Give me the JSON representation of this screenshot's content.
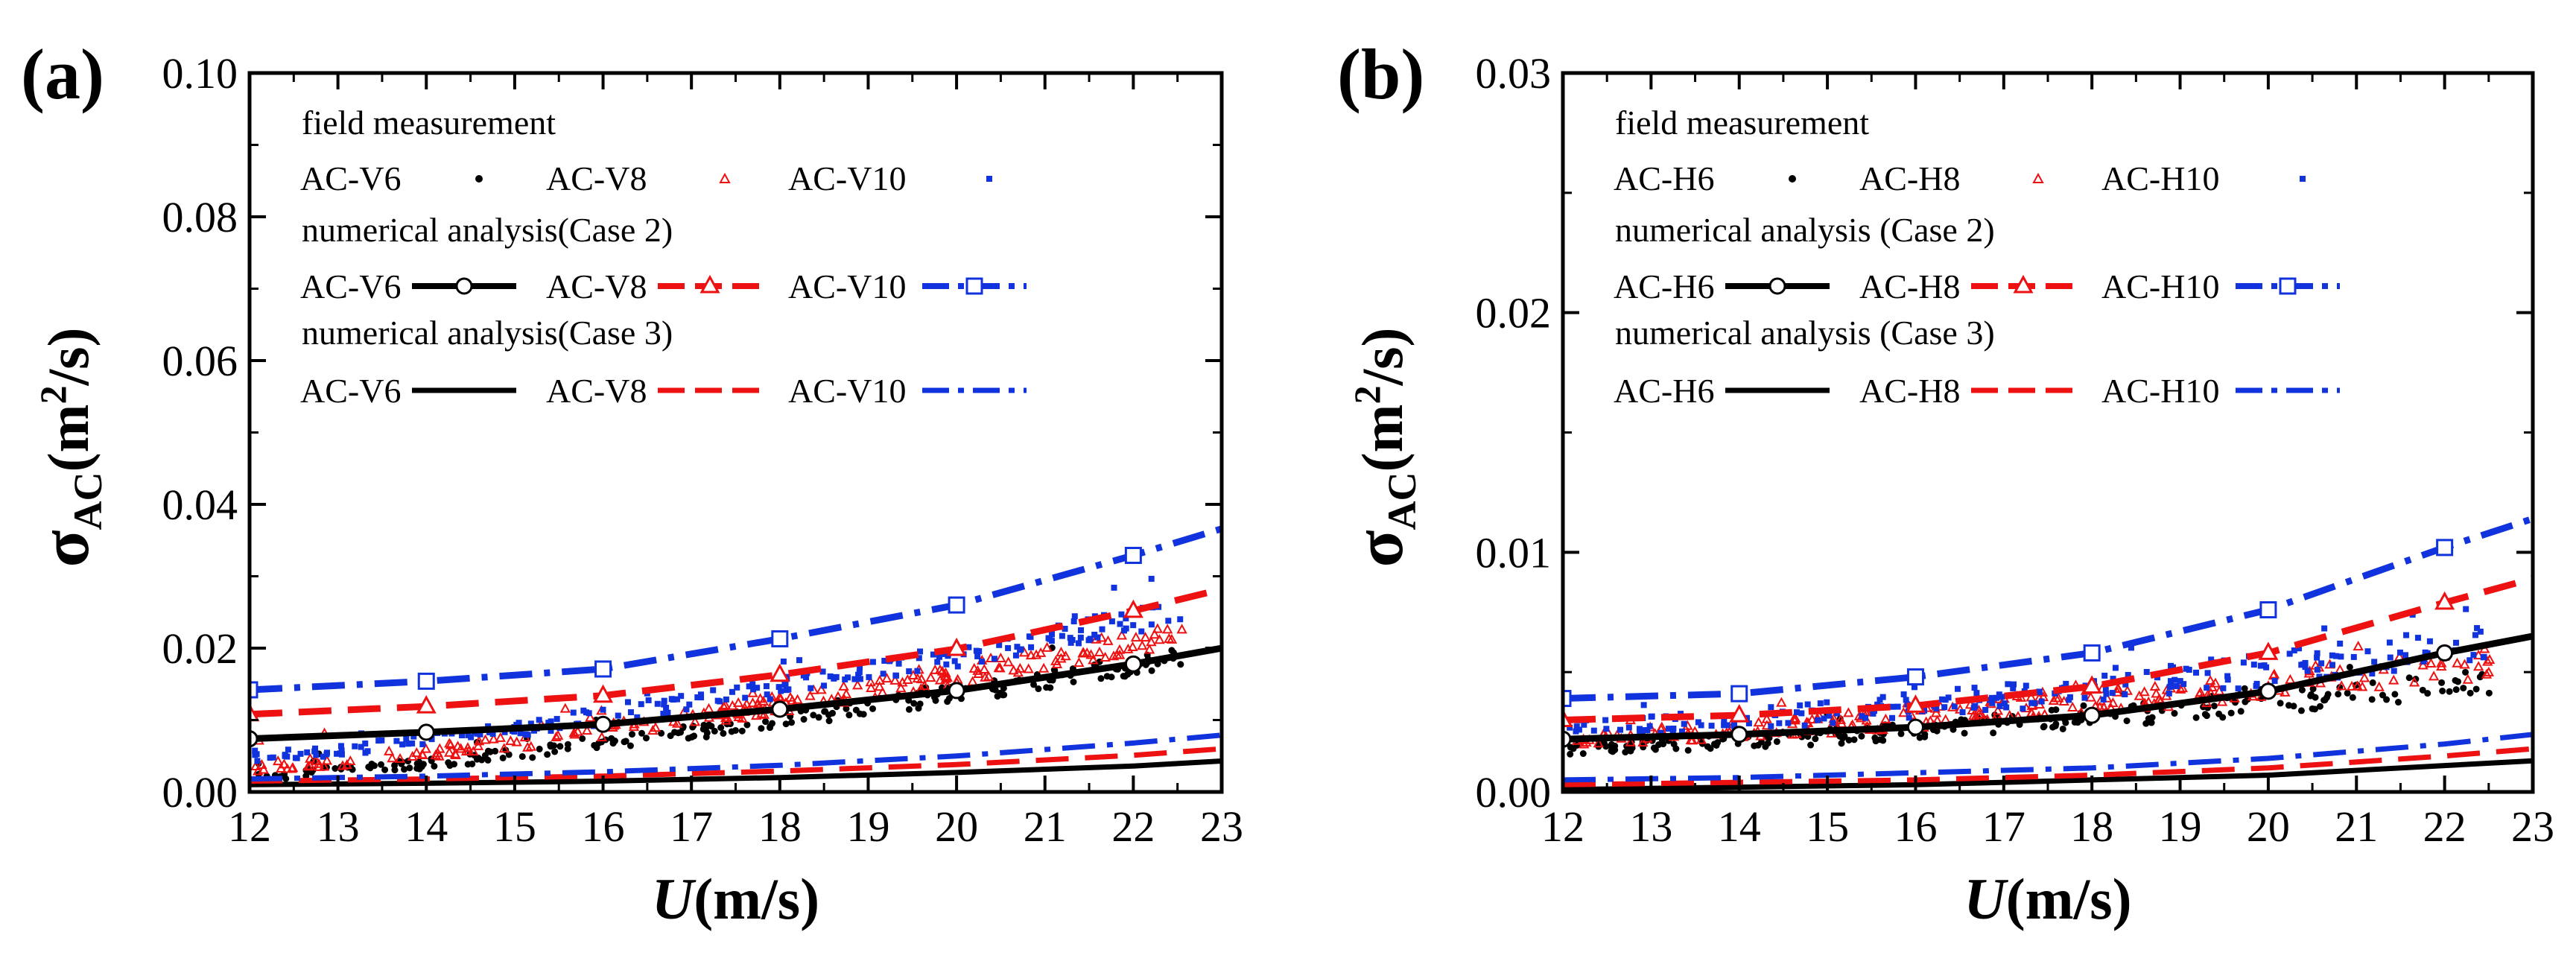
{
  "colors": {
    "series1": "#000000",
    "series2": "#ee1111",
    "series3": "#1133dd"
  },
  "chart_data": [
    {
      "type": "scatter+line",
      "panel_label": "(a)",
      "xlabel_sym": "U",
      "xlabel_unit": "(m/s)",
      "ylabel_sym": "σ",
      "ylabel_sub": "AC",
      "ylabel_unit": "(m",
      "ylabel_sup": "2",
      "ylabel_tail": "/s)",
      "xlim": [
        12,
        23
      ],
      "ylim": [
        0,
        0.1
      ],
      "xticks": [
        12,
        13,
        14,
        15,
        16,
        17,
        18,
        19,
        20,
        21,
        22,
        23
      ],
      "xtick_labels": [
        "12",
        "13",
        "14",
        "15",
        "16",
        "17",
        "18",
        "19",
        "20",
        "21",
        "22",
        "23"
      ],
      "yticks": [
        0,
        0.02,
        0.04,
        0.06,
        0.08,
        0.1
      ],
      "ytick_labels": [
        "0.00",
        "0.02",
        "0.04",
        "0.06",
        "0.08",
        "0.10"
      ],
      "legend": {
        "field_header": "field measurement",
        "case2_header": "numerical analysis(Case 2)",
        "case3_header": "numerical analysis(Case 3)",
        "names": [
          "AC-V6",
          "AC-V8",
          "AC-V10"
        ]
      },
      "scatter": [
        {
          "name": "AC-V6",
          "base": 0.0022,
          "growth": 0.00155,
          "noise": 0.0012,
          "spike": 0.0032
        },
        {
          "name": "AC-V8",
          "base": 0.0034,
          "growth": 0.00175,
          "noise": 0.0014,
          "spike": 0.004
        },
        {
          "name": "AC-V10",
          "base": 0.005,
          "growth": 0.0019,
          "noise": 0.0016,
          "spike": 0.0055
        }
      ],
      "case2": [
        {
          "name": "AC-V6",
          "x": [
            12,
            14,
            16,
            18,
            20,
            22,
            23
          ],
          "y": [
            0.0074,
            0.0083,
            0.0094,
            0.0115,
            0.0141,
            0.0178,
            0.02
          ]
        },
        {
          "name": "AC-V8",
          "x": [
            12,
            14,
            16,
            18,
            20,
            22,
            23
          ],
          "y": [
            0.0108,
            0.0119,
            0.0134,
            0.0163,
            0.0199,
            0.0252,
            0.0282
          ]
        },
        {
          "name": "AC-V10",
          "x": [
            12,
            14,
            16,
            18,
            20,
            22,
            23
          ],
          "y": [
            0.0142,
            0.0154,
            0.0171,
            0.0213,
            0.026,
            0.0329,
            0.0366
          ]
        }
      ],
      "case3": [
        {
          "name": "AC-V6",
          "x": [
            12,
            14,
            16,
            18,
            20,
            22,
            23
          ],
          "y": [
            0.001,
            0.0012,
            0.0015,
            0.002,
            0.0027,
            0.0036,
            0.0043
          ]
        },
        {
          "name": "AC-V8",
          "x": [
            12,
            14,
            16,
            18,
            20,
            22,
            23
          ],
          "y": [
            0.0015,
            0.0018,
            0.0022,
            0.0029,
            0.0038,
            0.0051,
            0.006
          ]
        },
        {
          "name": "AC-V10",
          "x": [
            12,
            14,
            16,
            18,
            20,
            22,
            23
          ],
          "y": [
            0.0018,
            0.0022,
            0.0028,
            0.0037,
            0.005,
            0.0068,
            0.0079
          ]
        }
      ]
    },
    {
      "type": "scatter+line",
      "panel_label": "(b)",
      "xlabel_sym": "U",
      "xlabel_unit": "(m/s)",
      "ylabel_sym": "σ",
      "ylabel_sub": "AC",
      "ylabel_unit": "(m",
      "ylabel_sup": "2",
      "ylabel_tail": "/s)",
      "xlim": [
        12,
        23
      ],
      "ylim": [
        0,
        0.03
      ],
      "xticks": [
        12,
        13,
        14,
        15,
        16,
        17,
        18,
        19,
        20,
        21,
        22,
        23
      ],
      "xtick_labels": [
        "12",
        "13",
        "14",
        "15",
        "16",
        "17",
        "18",
        "19",
        "20",
        "21",
        "22",
        "23"
      ],
      "yticks": [
        0,
        0.01,
        0.02,
        0.03
      ],
      "ytick_labels": [
        "0.00",
        "0.01",
        "0.02",
        "0.03"
      ],
      "legend": {
        "field_header": "field measurement",
        "case2_header": "numerical analysis (Case 2)",
        "case3_header": "numerical analysis (Case 3)",
        "names": [
          "AC-H6",
          "AC-H8",
          "AC-H10"
        ]
      },
      "scatter": [
        {
          "name": "AC-H6",
          "base": 0.0018,
          "growth": 0.00026,
          "noise": 0.0005,
          "spike": 0.0009
        },
        {
          "name": "AC-H8",
          "base": 0.0022,
          "growth": 0.0003,
          "noise": 0.0006,
          "spike": 0.0011
        },
        {
          "name": "AC-H10",
          "base": 0.0026,
          "growth": 0.00034,
          "noise": 0.0007,
          "spike": 0.0016
        }
      ],
      "case2": [
        {
          "name": "AC-H6",
          "x": [
            12,
            14,
            16,
            18,
            20,
            22,
            23
          ],
          "y": [
            0.0022,
            0.0024,
            0.0027,
            0.0032,
            0.0042,
            0.0058,
            0.0065
          ]
        },
        {
          "name": "AC-H8",
          "x": [
            12,
            14,
            16,
            18,
            20,
            22,
            23
          ],
          "y": [
            0.003,
            0.0032,
            0.0036,
            0.0044,
            0.0058,
            0.0079,
            0.0089
          ]
        },
        {
          "name": "AC-H10",
          "x": [
            12,
            14,
            16,
            18,
            20,
            22,
            23
          ],
          "y": [
            0.0039,
            0.0041,
            0.0048,
            0.0058,
            0.0076,
            0.0102,
            0.0114
          ]
        }
      ],
      "case3": [
        {
          "name": "AC-H6",
          "x": [
            12,
            14,
            16,
            18,
            20,
            22,
            23
          ],
          "y": [
            0.0001,
            0.0002,
            0.0003,
            0.0005,
            0.0007,
            0.0011,
            0.0013
          ]
        },
        {
          "name": "AC-H8",
          "x": [
            12,
            14,
            16,
            18,
            20,
            22,
            23
          ],
          "y": [
            0.0003,
            0.0004,
            0.0005,
            0.0007,
            0.001,
            0.0015,
            0.0018
          ]
        },
        {
          "name": "AC-H10",
          "x": [
            12,
            14,
            16,
            18,
            20,
            22,
            23
          ],
          "y": [
            0.0005,
            0.0006,
            0.0008,
            0.001,
            0.0014,
            0.002,
            0.0024
          ]
        }
      ]
    }
  ]
}
